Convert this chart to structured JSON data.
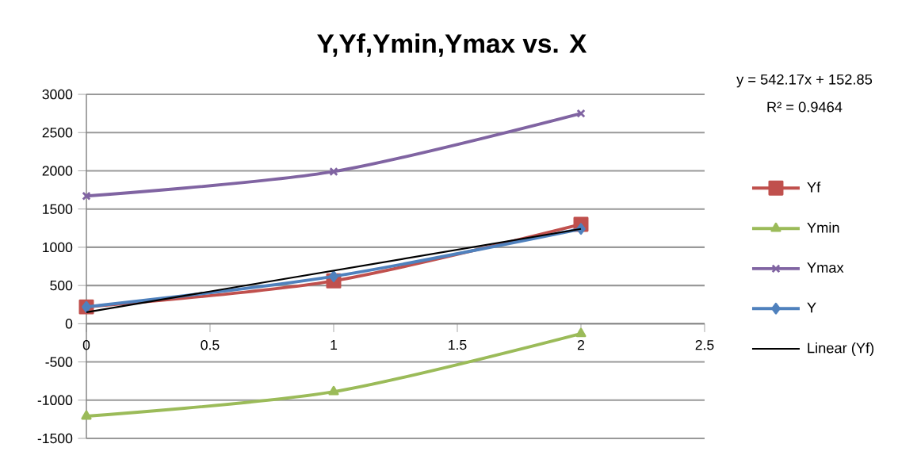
{
  "chart_data": {
    "type": "line",
    "title": "Y,Yf,Ymin,Ymax vs. X",
    "x": [
      0,
      1,
      2
    ],
    "series": [
      {
        "name": "Yf",
        "color": "#c0504d",
        "marker": "square",
        "values": [
          220,
          560,
          1300
        ]
      },
      {
        "name": "Ymin",
        "color": "#9bbb59",
        "marker": "triangle",
        "values": [
          -1210,
          -890,
          -130
        ]
      },
      {
        "name": "Ymax",
        "color": "#8064a2",
        "marker": "cross",
        "values": [
          1670,
          1990,
          2750
        ]
      },
      {
        "name": "Y",
        "color": "#4f81bd",
        "marker": "diamond",
        "values": [
          220,
          620,
          1240
        ]
      },
      {
        "name": "Linear (Yf)",
        "type": "line",
        "color": "#000000",
        "marker": "none",
        "x": [
          0,
          2
        ],
        "values": [
          150,
          1240
        ]
      }
    ],
    "xlim": [
      0,
      2.5
    ],
    "xticks": [
      0,
      0.5,
      1,
      1.5,
      2,
      2.5
    ],
    "ylim": [
      -1500,
      3000
    ],
    "yticks": [
      -1500,
      -1000,
      -500,
      0,
      500,
      1000,
      1500,
      2000,
      2500,
      3000
    ],
    "grid": "y",
    "legend": "right",
    "annotations": [
      "y = 542.17x + 152.85",
      "R² = 0.9464"
    ]
  }
}
